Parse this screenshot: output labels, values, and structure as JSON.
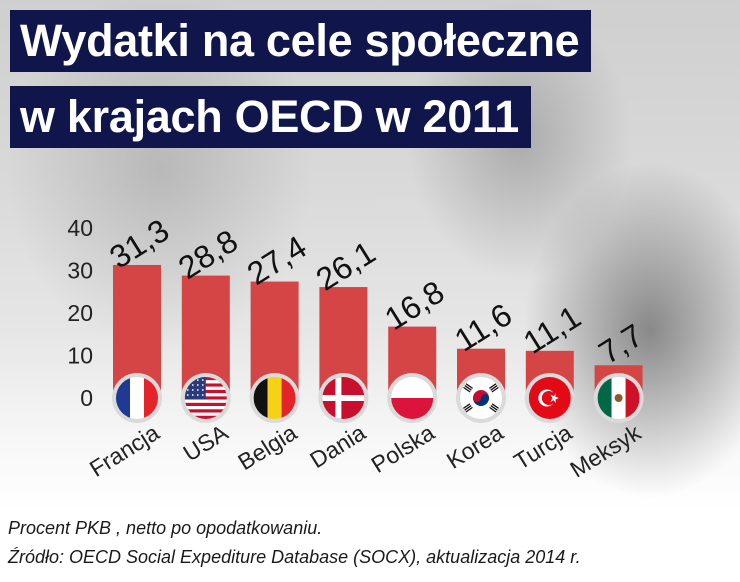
{
  "title_line1": "Wydatki na cele społeczne",
  "title_line2": "w krajach OECD w 2011",
  "footnote_line1": "Procent PKB , netto po opodatkowaniu.",
  "footnote_line2": "Źródło: OECD Social Expediture Database (SOCX), aktualizacja 2014 r.",
  "colors": {
    "bar": "#d64545",
    "title_bg": "#10164c",
    "flag_ring": "#dadada"
  },
  "chart_data": {
    "type": "bar",
    "categories": [
      "Francja",
      "USA",
      "Belgia",
      "Dania",
      "Polska",
      "Korea",
      "Turcja",
      "Meksyk"
    ],
    "values": [
      31.3,
      28.8,
      27.4,
      26.1,
      16.8,
      11.6,
      11.1,
      7.7
    ],
    "value_labels": [
      "31,3",
      "28,8",
      "27,4",
      "26,1",
      "16,8",
      "11,6",
      "11,1",
      "7,7"
    ],
    "flags": [
      "france-flag-icon",
      "usa-flag-icon",
      "belgium-flag-icon",
      "denmark-flag-icon",
      "poland-flag-icon",
      "south-korea-flag-icon",
      "turkey-flag-icon",
      "mexico-flag-icon"
    ],
    "yticks": [
      "0",
      "10",
      "20",
      "30",
      "40"
    ],
    "ylim": [
      0,
      40
    ],
    "grid": false,
    "title": "",
    "xlabel": "",
    "ylabel": ""
  }
}
